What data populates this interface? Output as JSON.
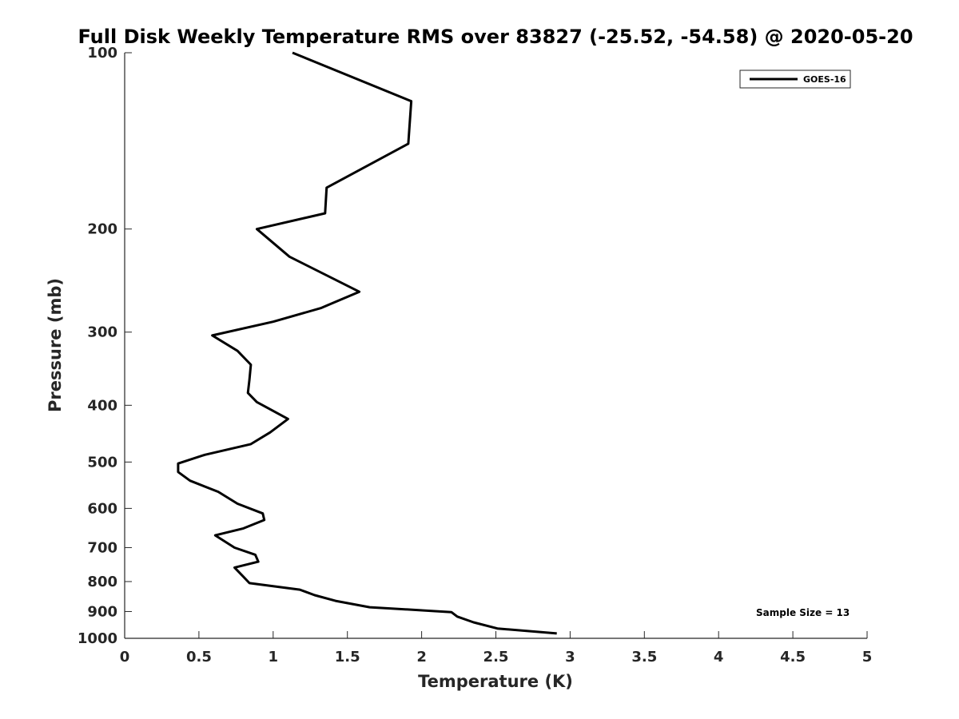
{
  "chart_data": {
    "type": "line",
    "title": "Full Disk Weekly Temperature RMS over 83827 (-25.52, -54.58) @ 2020-05-20",
    "xlabel": "Temperature (K)",
    "ylabel": "Pressure (mb)",
    "xlim": [
      0,
      5
    ],
    "ylim": [
      1000,
      100
    ],
    "yscale": "log",
    "y_reversed": true,
    "grid": false,
    "legend_position": "top-right",
    "x_ticks": [
      "0",
      "0.5",
      "1",
      "1.5",
      "2",
      "2.5",
      "3",
      "3.5",
      "4",
      "4.5",
      "5"
    ],
    "y_ticks": [
      "100",
      "200",
      "300",
      "400",
      "500",
      "600",
      "700",
      "800",
      "900",
      "1000"
    ],
    "annotation": "Sample Size = 13",
    "series": [
      {
        "name": "GOES-16",
        "color": "#000000",
        "x": [
          1.13,
          1.93,
          1.91,
          1.36,
          1.35,
          0.89,
          1.11,
          1.58,
          1.32,
          1.0,
          0.59,
          0.76,
          0.85,
          0.84,
          0.83,
          0.89,
          1.1,
          0.98,
          0.85,
          0.54,
          0.36,
          0.36,
          0.44,
          0.63,
          0.76,
          0.93,
          0.94,
          0.8,
          0.61,
          0.74,
          0.88,
          0.9,
          0.74,
          0.8,
          0.84,
          1.18,
          1.28,
          1.42,
          1.65,
          2.2,
          2.24,
          2.35,
          2.51,
          2.91
        ],
        "y": [
          100,
          121,
          143,
          170,
          188,
          200,
          223,
          256,
          273,
          288,
          304,
          323,
          341,
          362,
          381,
          395,
          422,
          445,
          466,
          486,
          503,
          520,
          538,
          562,
          589,
          612,
          628,
          649,
          667,
          700,
          720,
          740,
          757,
          785,
          805,
          826,
          844,
          863,
          885,
          902,
          918,
          939,
          962,
          981
        ]
      }
    ]
  }
}
